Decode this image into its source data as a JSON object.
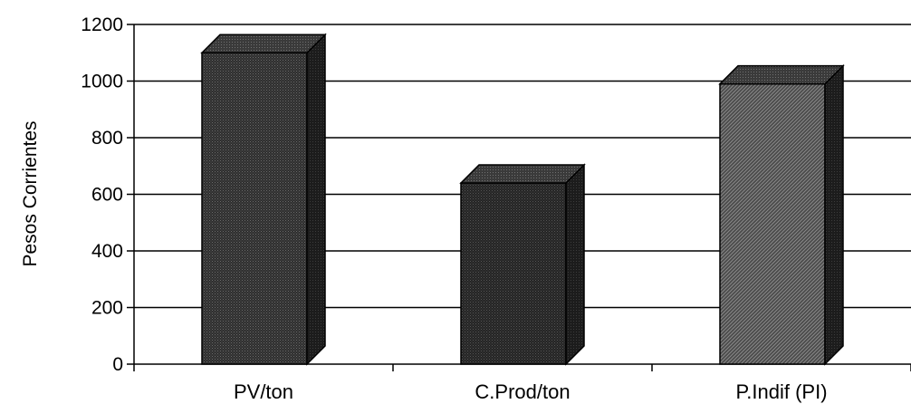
{
  "chart_data": {
    "type": "bar",
    "categories": [
      "PV/ton",
      "C.Prod/ton",
      "P.Indif (PI)"
    ],
    "values": [
      1100,
      640,
      990
    ],
    "ylabel": "Pesos Corrientes",
    "xlabel": "",
    "ylim": [
      0,
      1200
    ],
    "yticks": [
      0,
      200,
      400,
      600,
      800,
      1000,
      1200
    ],
    "grid": true,
    "bar_colors": [
      "#333333",
      "#2b2b2b",
      "#4a4a4a"
    ]
  }
}
